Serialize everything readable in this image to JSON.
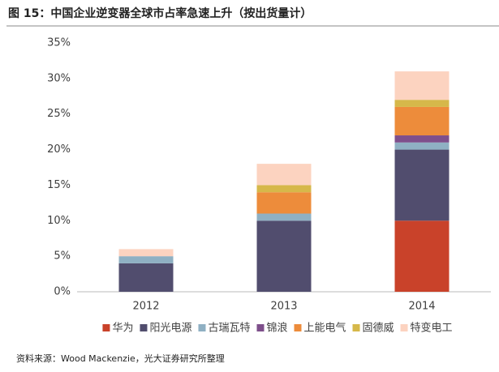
{
  "chart_data": {
    "type": "stacked_bar",
    "title": "图 15：中国企业逆变器全球市占率急速上升（按出货量计）",
    "source": "资料来源：Wood Mackenzie，光大证券研究所整理",
    "categories": [
      "2012",
      "2013",
      "2014"
    ],
    "series": [
      {
        "name": "华为",
        "color": "#c9422a",
        "values": [
          0,
          0,
          10
        ]
      },
      {
        "name": "阳光电源",
        "color": "#514d6e",
        "values": [
          4,
          10,
          10
        ]
      },
      {
        "name": "古瑞瓦特",
        "color": "#8fb0c3",
        "values": [
          1,
          1,
          1
        ]
      },
      {
        "name": "锦浪",
        "color": "#7e4f8b",
        "values": [
          0,
          0,
          1
        ]
      },
      {
        "name": "上能电气",
        "color": "#ed8c3b",
        "values": [
          0,
          3,
          4
        ]
      },
      {
        "name": "固德威",
        "color": "#d6b84a",
        "values": [
          0,
          1,
          1
        ]
      },
      {
        "name": "特变电工",
        "color": "#fcd3c0",
        "values": [
          1,
          3,
          4
        ]
      }
    ],
    "ylim": [
      0,
      35
    ],
    "yticks": [
      {
        "value": 0,
        "label": "0%"
      },
      {
        "value": 5,
        "label": "5%"
      },
      {
        "value": 10,
        "label": "10%"
      },
      {
        "value": 15,
        "label": "15%"
      },
      {
        "value": 20,
        "label": "20%"
      },
      {
        "value": 25,
        "label": "25%"
      },
      {
        "value": 30,
        "label": "30%"
      },
      {
        "value": 35,
        "label": "35%"
      }
    ],
    "grid": false
  }
}
